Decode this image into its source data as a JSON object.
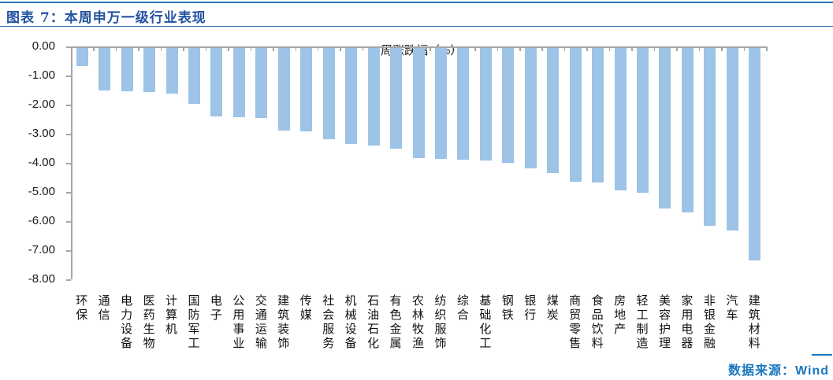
{
  "header": {
    "title": "图表 7：本周申万一级行业表现"
  },
  "chart": {
    "axis_title": "周涨跌幅（%）"
  },
  "chart_data": {
    "type": "bar",
    "title": "周涨跌幅（%）",
    "xlabel": "",
    "ylabel": "周涨跌幅（%）",
    "ylim": [
      -8,
      0
    ],
    "ytick_labels": [
      "0.00",
      "-1.00",
      "-2.00",
      "-3.00",
      "-4.00",
      "-5.00",
      "-6.00",
      "-7.00",
      "-8.00"
    ],
    "grid": false,
    "legend_position": "none",
    "bar_color": "#9DC3E6",
    "axis_color": "#A6A6A6",
    "categories": [
      "环保",
      "通信",
      "电力设备",
      "医药生物",
      "计算机",
      "国防军工",
      "电子",
      "公用事业",
      "交通运输",
      "建筑装饰",
      "传媒",
      "社会服务",
      "机械设备",
      "石油石化",
      "有色金属",
      "农林牧渔",
      "纺织服饰",
      "综合",
      "基础化工",
      "钢铁",
      "银行",
      "煤炭",
      "商贸零售",
      "食品饮料",
      "房地产",
      "轻工制造",
      "美容护理",
      "家用电器",
      "非银金融",
      "汽车",
      "建筑材料"
    ],
    "values": [
      -0.68,
      -1.52,
      -1.55,
      -1.58,
      -1.62,
      -1.97,
      -2.4,
      -2.43,
      -2.45,
      -2.89,
      -2.92,
      -3.19,
      -3.34,
      -3.41,
      -3.52,
      -3.84,
      -3.86,
      -3.88,
      -3.93,
      -3.99,
      -4.18,
      -4.34,
      -4.65,
      -4.68,
      -4.95,
      -5.04,
      -5.56,
      -5.71,
      -6.16,
      -6.32,
      -7.36
    ]
  },
  "footer": {
    "source": "数据来源：Wind"
  },
  "colors": {
    "bar": "#9DC3E6",
    "axis": "#A6A6A6",
    "title_text": "#2352A0",
    "rule": "#2E74B5",
    "source_text": "#1878BE"
  }
}
